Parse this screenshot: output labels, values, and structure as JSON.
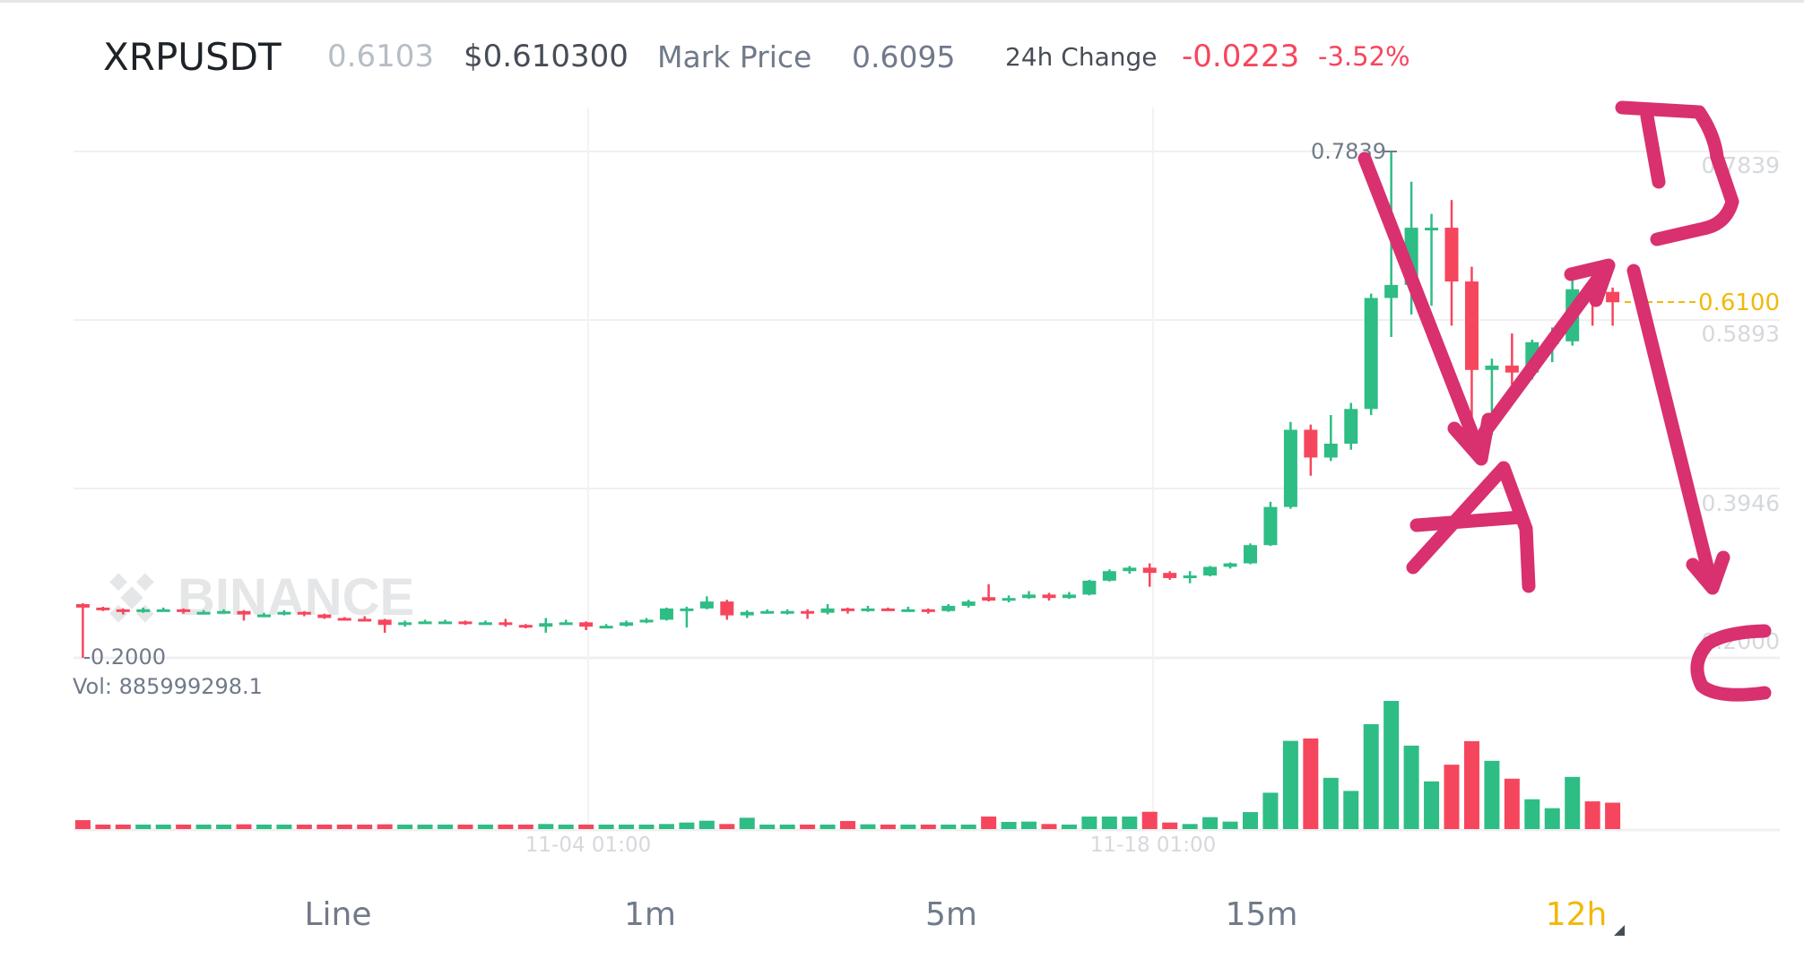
{
  "header": {
    "symbol": "XRPUSDT",
    "last_price": "0.6103",
    "usd_price": "$0.610300",
    "mark_price_label": "Mark Price",
    "mark_price_value": "0.6095",
    "change_label": "24h Change",
    "change_value": "-0.0223",
    "change_percent": "-3.52%"
  },
  "chart": {
    "watermark": "BINANCE",
    "price_axis_labels": [
      "0.7839",
      "0.5893",
      "0.3946",
      "0.2000"
    ],
    "max_label": "0.7839",
    "min_label": "0.2000",
    "current_price_label": "0.6100",
    "volume_label": "Vol: 885999298.1",
    "date_labels": [
      "11-04 01:00",
      "11-18 01:00"
    ],
    "colors": {
      "up": "#2ebd85",
      "down": "#f6465d",
      "current": "#f0b90b",
      "annotation": "#d9306f"
    }
  },
  "chart_data": {
    "type": "candlestick",
    "interval": "12h",
    "ylim": [
      0.2,
      0.7839
    ],
    "x_ticks": [
      "11-04 01:00",
      "11-18 01:00"
    ],
    "ohlc": [
      [
        0.262,
        0.263,
        0.2,
        0.258
      ],
      [
        0.258,
        0.259,
        0.254,
        0.256
      ],
      [
        0.256,
        0.257,
        0.25,
        0.253
      ],
      [
        0.253,
        0.258,
        0.252,
        0.256
      ],
      [
        0.256,
        0.258,
        0.254,
        0.256
      ],
      [
        0.256,
        0.257,
        0.251,
        0.253
      ],
      [
        0.253,
        0.255,
        0.251,
        0.253
      ],
      [
        0.253,
        0.256,
        0.252,
        0.254
      ],
      [
        0.254,
        0.255,
        0.243,
        0.25
      ],
      [
        0.25,
        0.252,
        0.248,
        0.25
      ],
      [
        0.25,
        0.255,
        0.249,
        0.253
      ],
      [
        0.253,
        0.254,
        0.248,
        0.25
      ],
      [
        0.25,
        0.251,
        0.245,
        0.246
      ],
      [
        0.246,
        0.247,
        0.243,
        0.245
      ],
      [
        0.245,
        0.248,
        0.242,
        0.244
      ],
      [
        0.244,
        0.245,
        0.229,
        0.238
      ],
      [
        0.238,
        0.243,
        0.236,
        0.241
      ],
      [
        0.241,
        0.244,
        0.24,
        0.242
      ],
      [
        0.242,
        0.244,
        0.24,
        0.242
      ],
      [
        0.242,
        0.243,
        0.238,
        0.24
      ],
      [
        0.24,
        0.243,
        0.239,
        0.241
      ],
      [
        0.241,
        0.245,
        0.236,
        0.238
      ],
      [
        0.238,
        0.239,
        0.234,
        0.236
      ],
      [
        0.236,
        0.246,
        0.229,
        0.24
      ],
      [
        0.24,
        0.244,
        0.238,
        0.241
      ],
      [
        0.241,
        0.242,
        0.232,
        0.236
      ],
      [
        0.236,
        0.239,
        0.234,
        0.237
      ],
      [
        0.237,
        0.243,
        0.236,
        0.241
      ],
      [
        0.241,
        0.246,
        0.24,
        0.244
      ],
      [
        0.244,
        0.258,
        0.243,
        0.257
      ],
      [
        0.257,
        0.259,
        0.235,
        0.257
      ],
      [
        0.257,
        0.271,
        0.256,
        0.265
      ],
      [
        0.265,
        0.267,
        0.244,
        0.249
      ],
      [
        0.249,
        0.255,
        0.246,
        0.253
      ],
      [
        0.253,
        0.256,
        0.251,
        0.254
      ],
      [
        0.254,
        0.256,
        0.25,
        0.254
      ],
      [
        0.254,
        0.256,
        0.245,
        0.252
      ],
      [
        0.252,
        0.262,
        0.25,
        0.257
      ],
      [
        0.257,
        0.258,
        0.251,
        0.254
      ],
      [
        0.254,
        0.26,
        0.253,
        0.257
      ],
      [
        0.257,
        0.258,
        0.254,
        0.256
      ],
      [
        0.256,
        0.259,
        0.253,
        0.256
      ],
      [
        0.256,
        0.257,
        0.251,
        0.254
      ],
      [
        0.254,
        0.262,
        0.253,
        0.26
      ],
      [
        0.26,
        0.267,
        0.258,
        0.265
      ],
      [
        0.27,
        0.285,
        0.265,
        0.266
      ],
      [
        0.266,
        0.272,
        0.264,
        0.269
      ],
      [
        0.269,
        0.277,
        0.268,
        0.273
      ],
      [
        0.273,
        0.275,
        0.266,
        0.269
      ],
      [
        0.269,
        0.276,
        0.268,
        0.273
      ],
      [
        0.273,
        0.29,
        0.272,
        0.289
      ],
      [
        0.289,
        0.302,
        0.288,
        0.3
      ],
      [
        0.3,
        0.306,
        0.297,
        0.304
      ],
      [
        0.304,
        0.309,
        0.282,
        0.298
      ],
      [
        0.298,
        0.3,
        0.29,
        0.292
      ],
      [
        0.292,
        0.3,
        0.286,
        0.295
      ],
      [
        0.295,
        0.306,
        0.294,
        0.305
      ],
      [
        0.305,
        0.31,
        0.303,
        0.309
      ],
      [
        0.309,
        0.332,
        0.308,
        0.33
      ],
      [
        0.33,
        0.38,
        0.329,
        0.374
      ],
      [
        0.374,
        0.472,
        0.372,
        0.463
      ],
      [
        0.463,
        0.469,
        0.41,
        0.431
      ],
      [
        0.431,
        0.48,
        0.427,
        0.447
      ],
      [
        0.447,
        0.494,
        0.44,
        0.487
      ],
      [
        0.487,
        0.62,
        0.48,
        0.615
      ],
      [
        0.615,
        0.7839,
        0.57,
        0.63
      ],
      [
        0.63,
        0.749,
        0.596,
        0.696
      ],
      [
        0.696,
        0.712,
        0.606,
        0.696
      ],
      [
        0.696,
        0.728,
        0.583,
        0.634
      ],
      [
        0.634,
        0.651,
        0.468,
        0.532
      ],
      [
        0.532,
        0.545,
        0.457,
        0.537
      ],
      [
        0.537,
        0.574,
        0.515,
        0.529
      ],
      [
        0.529,
        0.567,
        0.521,
        0.564
      ],
      [
        0.564,
        0.581,
        0.541,
        0.565
      ],
      [
        0.565,
        0.643,
        0.56,
        0.625
      ],
      [
        0.625,
        0.627,
        0.583,
        0.622
      ],
      [
        0.622,
        0.627,
        0.583,
        0.61
      ]
    ],
    "volume_millions": [
      300,
      120,
      150,
      80,
      80,
      80,
      80,
      80,
      160,
      80,
      120,
      140,
      100,
      100,
      120,
      160,
      80,
      80,
      80,
      80,
      80,
      100,
      80,
      170,
      150,
      150,
      130,
      110,
      100,
      170,
      220,
      280,
      170,
      380,
      90,
      90,
      90,
      120,
      270,
      160,
      140,
      110,
      90,
      100,
      150,
      420,
      240,
      250,
      170,
      140,
      420,
      420,
      420,
      580,
      220,
      170,
      400,
      250,
      570,
      1220,
      2960,
      3040,
      1720,
      1280,
      3520,
      4300,
      2800,
      1600,
      2160,
      2950,
      2290,
      1690,
      1000,
      700,
      1750,
      930,
      886
    ]
  },
  "annotations": {
    "letters": [
      "A",
      "D",
      "C"
    ]
  },
  "tabs": [
    {
      "label": "Line",
      "active": false
    },
    {
      "label": "1m",
      "active": false
    },
    {
      "label": "5m",
      "active": false
    },
    {
      "label": "15m",
      "active": false
    },
    {
      "label": "12h",
      "active": true
    }
  ]
}
